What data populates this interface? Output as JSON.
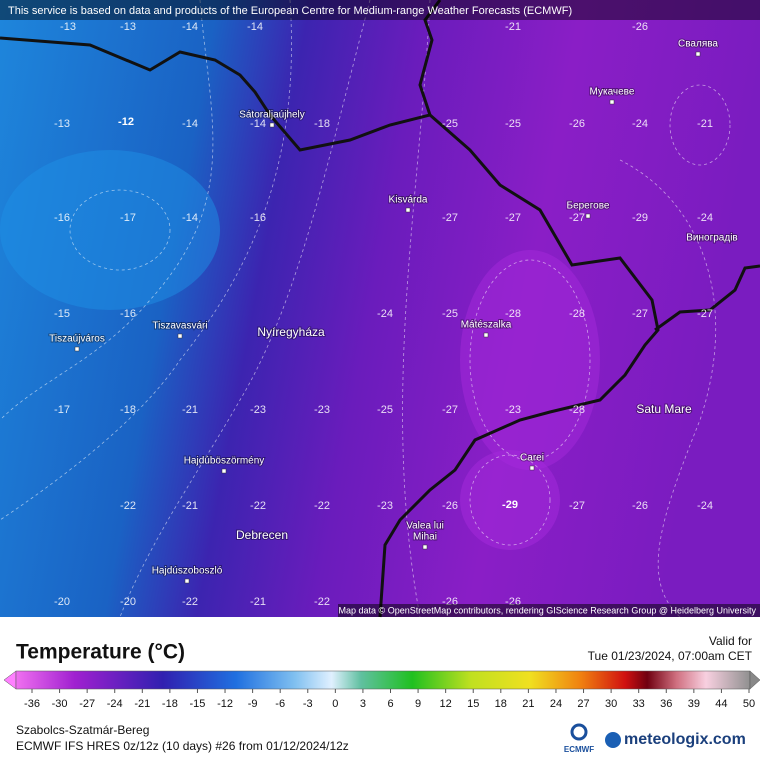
{
  "header": "This service is based on data and products of the European Centre for Medium-range Weather Forecasts (ECMWF)",
  "map": {
    "cities": [
      "Свалява",
      "Мукачеве",
      "Sátoraljaújhely",
      "Kisvárda",
      "Берегове",
      "Виноградів",
      "Tiszavasvári",
      "Nyíregyháza",
      "Tiszaújváros",
      "Mátészalka",
      "Satu Mare",
      "Carei",
      "Hajdúböszörmény",
      "Debrecen",
      "Valea lui",
      "Mihai",
      "Hajdúszoboszló"
    ],
    "contour_labels": [
      "-13",
      "-13",
      "-14",
      "-14",
      "-21",
      "-26",
      "-12",
      "-13",
      "-14",
      "-14",
      "-18",
      "-25",
      "-25",
      "-26",
      "-24",
      "-21",
      "-16",
      "-17",
      "-14",
      "-16",
      "-27",
      "-27",
      "-27",
      "-29",
      "-24",
      "-15",
      "-16",
      "-24",
      "-25",
      "-28",
      "-28",
      "-27",
      "-27",
      "-17",
      "-18",
      "-21",
      "-23",
      "-23",
      "-25",
      "-27",
      "-23",
      "-28",
      "-22",
      "-21",
      "-22",
      "-22",
      "-23",
      "-26",
      "-29",
      "-27",
      "-26",
      "-24",
      "-20",
      "-20",
      "-22",
      "-21",
      "-22",
      "-26",
      "-26"
    ],
    "attribution": "Map data © OpenStreetMap contributors, rendering GIScience Research Group @ Heidelberg University"
  },
  "legend": {
    "title": "Temperature (°C)",
    "valid_label": "Valid for",
    "valid_time": "Tue 01/23/2024, 07:00am CET",
    "ticks": [
      -36,
      -30,
      -27,
      -24,
      -21,
      -18,
      -15,
      -12,
      -9,
      -6,
      -3,
      0,
      3,
      6,
      9,
      12,
      15,
      18,
      21,
      24,
      27,
      30,
      33,
      36,
      39,
      44,
      50
    ]
  },
  "footer": {
    "region": "Szabolcs-Szatmár-Bereg",
    "model": "ECMWF IFS HRES 0z/12z (10 days) #26 from 01/12/2024/12z",
    "ecmwf_logo": "ECMWF",
    "brand": "meteologix.com"
  }
}
